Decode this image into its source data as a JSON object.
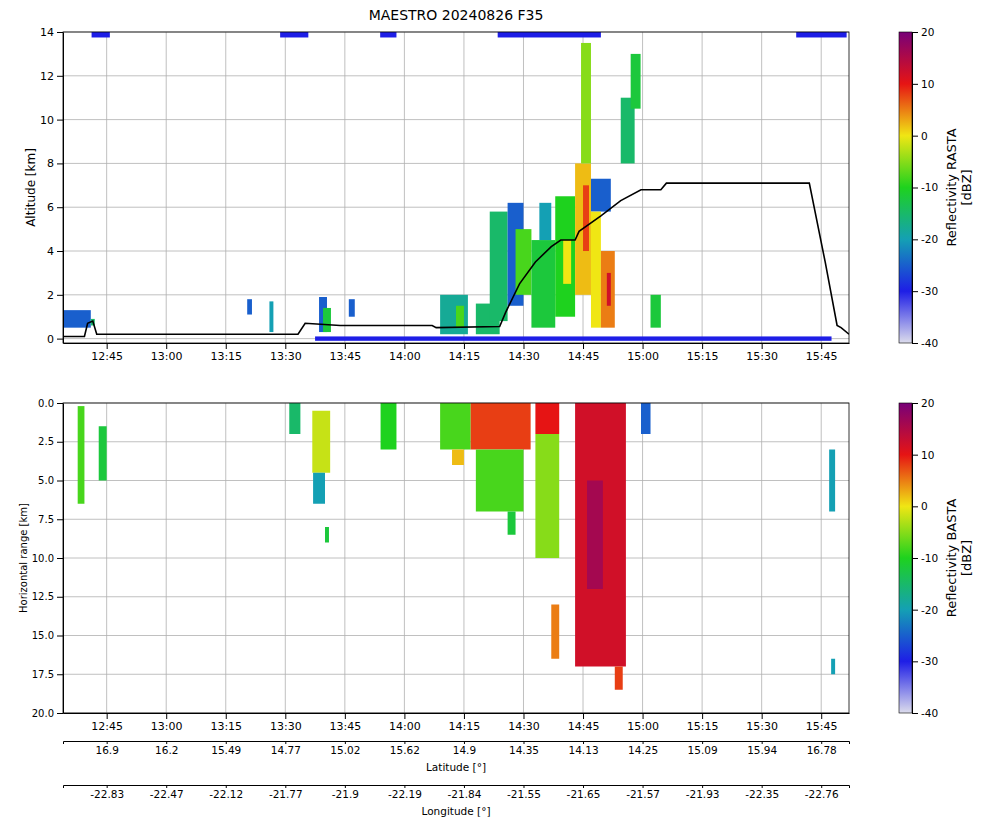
{
  "chart_data": [
    {
      "type": "heatmap",
      "title": "MAESTRO 20240826 F35",
      "y_label": "Altitude [km]",
      "xlim": [
        754,
        952
      ],
      "xticks": [
        {
          "value": 765,
          "label": "12:45"
        },
        {
          "value": 780,
          "label": "13:00"
        },
        {
          "value": 795,
          "label": "13:15"
        },
        {
          "value": 810,
          "label": "13:30"
        },
        {
          "value": 825,
          "label": "13:45"
        },
        {
          "value": 840,
          "label": "14:00"
        },
        {
          "value": 855,
          "label": "14:15"
        },
        {
          "value": 870,
          "label": "14:30"
        },
        {
          "value": 885,
          "label": "14:45"
        },
        {
          "value": 900,
          "label": "15:00"
        },
        {
          "value": 915,
          "label": "15:15"
        },
        {
          "value": 930,
          "label": "15:30"
        },
        {
          "value": 945,
          "label": "15:45"
        }
      ],
      "ylim": [
        -0.2,
        14
      ],
      "yticks": [
        0,
        2,
        4,
        6,
        8,
        10,
        12,
        14
      ],
      "grid": true,
      "colorbar": {
        "label": "Reflectivity RASTA\n[dBZ]",
        "range": [
          -40,
          20
        ],
        "ticks": [
          -40,
          -30,
          -20,
          -10,
          0,
          10,
          20
        ]
      },
      "cells": [
        [
          754,
          761,
          0.5,
          1.3,
          -25
        ],
        [
          761,
          762,
          0.6,
          0.9,
          -15
        ],
        [
          761.2,
          765.8,
          13.75,
          14,
          -30
        ],
        [
          800.4,
          801.6,
          1.1,
          1.8,
          -25
        ],
        [
          806,
          807,
          0.3,
          1.7,
          -20
        ],
        [
          808.7,
          815.8,
          13.75,
          14,
          -30
        ],
        [
          817.5,
          947.6,
          -0.1,
          0.1,
          -30
        ],
        [
          818.5,
          820.5,
          0.3,
          1.9,
          -25
        ],
        [
          819.5,
          821.5,
          0.3,
          1.4,
          -12
        ],
        [
          826,
          827.5,
          1.0,
          1.8,
          -25
        ],
        [
          833.9,
          838,
          13.75,
          14,
          -30
        ],
        [
          849,
          856,
          0.2,
          2.0,
          -18
        ],
        [
          853,
          855,
          0.5,
          1.5,
          -8
        ],
        [
          858,
          864,
          0.2,
          1.6,
          -15
        ],
        [
          863.5,
          889.5,
          13.75,
          14,
          -30
        ],
        [
          861.5,
          866,
          0.8,
          5.8,
          -15
        ],
        [
          866,
          870,
          1.5,
          6.2,
          -25
        ],
        [
          868,
          872,
          2.0,
          5.0,
          -8
        ],
        [
          872,
          878,
          0.5,
          4.5,
          -12
        ],
        [
          874,
          877,
          4.5,
          6.2,
          -20
        ],
        [
          878,
          883,
          1.0,
          6.5,
          -10
        ],
        [
          880,
          882,
          2.5,
          4.5,
          0
        ],
        [
          883,
          887,
          2,
          8,
          2
        ],
        [
          884.5,
          887,
          8,
          13.5,
          -5
        ],
        [
          885,
          886.5,
          4,
          7,
          8
        ],
        [
          887,
          892,
          5.8,
          7.3,
          -25
        ],
        [
          887,
          889.5,
          0.5,
          5.8,
          0
        ],
        [
          889.5,
          893,
          0.5,
          4.0,
          5
        ],
        [
          891,
          892,
          1.5,
          3,
          12
        ],
        [
          894.5,
          898,
          8,
          11,
          -15
        ],
        [
          897,
          899.5,
          10.5,
          13,
          -12
        ],
        [
          902,
          904.6,
          0.5,
          2,
          -12
        ],
        [
          938.7,
          951.4,
          13.75,
          14,
          -30
        ]
      ],
      "line": {
        "color": "#000000",
        "x": [
          754,
          759.4,
          760.2,
          761.5,
          762.5,
          813.2,
          815,
          823.8,
          847,
          848,
          864,
          865.5,
          869,
          873,
          877,
          879.4,
          883,
          884,
          889.5,
          894.5,
          899.6,
          904.6,
          906,
          942,
          946,
          949,
          950,
          952
        ],
        "y": [
          0.1,
          0.1,
          0.7,
          0.8,
          0.2,
          0.2,
          0.7,
          0.6,
          0.6,
          0.5,
          0.55,
          1.2,
          2.5,
          3.5,
          4.2,
          4.5,
          4.5,
          4.9,
          5.6,
          6.3,
          6.8,
          6.8,
          7.1,
          7.1,
          3.5,
          0.6,
          0.5,
          0.2
        ]
      }
    },
    {
      "type": "heatmap",
      "y_label": "Horizontal range [km]",
      "xlim": [
        754,
        952
      ],
      "xticks": [
        {
          "value": 765,
          "label": "12:45"
        },
        {
          "value": 780,
          "label": "13:00"
        },
        {
          "value": 795,
          "label": "13:15"
        },
        {
          "value": 810,
          "label": "13:30"
        },
        {
          "value": 825,
          "label": "13:45"
        },
        {
          "value": 840,
          "label": "14:00"
        },
        {
          "value": 855,
          "label": "14:15"
        },
        {
          "value": 870,
          "label": "14:30"
        },
        {
          "value": 885,
          "label": "14:45"
        },
        {
          "value": 900,
          "label": "15:00"
        },
        {
          "value": 915,
          "label": "15:15"
        },
        {
          "value": 930,
          "label": "15:30"
        },
        {
          "value": 945,
          "label": "15:45"
        }
      ],
      "ylim": [
        20,
        0
      ],
      "yticks": [
        {
          "value": 0,
          "label": "0.0"
        },
        {
          "value": 2.5,
          "label": "2.5"
        },
        {
          "value": 5,
          "label": "5.0"
        },
        {
          "value": 7.5,
          "label": "7.5"
        },
        {
          "value": 10,
          "label": "10.0"
        },
        {
          "value": 12.5,
          "label": "12.5"
        },
        {
          "value": 15,
          "label": "15.0"
        },
        {
          "value": 17.5,
          "label": "17.5"
        },
        {
          "value": 20,
          "label": "20.0"
        }
      ],
      "grid": true,
      "colorbar": {
        "label": "Reflectivity BASTA\n[dBZ]",
        "range": [
          -40,
          20
        ],
        "ticks": [
          -40,
          -30,
          -20,
          -10,
          0,
          10,
          20
        ]
      },
      "x2_label": "Latitude [°]",
      "x2ticks": [
        {
          "value": 765,
          "label": "16.9"
        },
        {
          "value": 780,
          "label": "16.2"
        },
        {
          "value": 795,
          "label": "15.49"
        },
        {
          "value": 810,
          "label": "14.77"
        },
        {
          "value": 825,
          "label": "15.02"
        },
        {
          "value": 840,
          "label": "15.62"
        },
        {
          "value": 855,
          "label": "14.9"
        },
        {
          "value": 870,
          "label": "14.35"
        },
        {
          "value": 885,
          "label": "14.13"
        },
        {
          "value": 900,
          "label": "14.25"
        },
        {
          "value": 915,
          "label": "15.09"
        },
        {
          "value": 930,
          "label": "15.94"
        },
        {
          "value": 945,
          "label": "16.78"
        }
      ],
      "x3_label": "Longitude [°]",
      "x3ticks": [
        {
          "value": 765,
          "label": "-22.83"
        },
        {
          "value": 780,
          "label": "-22.47"
        },
        {
          "value": 795,
          "label": "-22.12"
        },
        {
          "value": 810,
          "label": "-21.77"
        },
        {
          "value": 825,
          "label": "-21.9"
        },
        {
          "value": 840,
          "label": "-22.19"
        },
        {
          "value": 855,
          "label": "-21.84"
        },
        {
          "value": 870,
          "label": "-21.55"
        },
        {
          "value": 885,
          "label": "-21.65"
        },
        {
          "value": 900,
          "label": "-21.57"
        },
        {
          "value": 915,
          "label": "-21.93"
        },
        {
          "value": 930,
          "label": "-22.35"
        },
        {
          "value": 945,
          "label": "-22.76"
        }
      ],
      "cells": [
        [
          757.7,
          759.4,
          0.2,
          6.5,
          -8
        ],
        [
          763,
          765,
          1.5,
          5.0,
          -12
        ],
        [
          811,
          813.8,
          0,
          2,
          -15
        ],
        [
          816.8,
          821.3,
          0.5,
          4.5,
          -2
        ],
        [
          817,
          820,
          4.5,
          6.5,
          -20
        ],
        [
          820,
          821,
          8,
          9,
          -12
        ],
        [
          834,
          838,
          0,
          3,
          -10
        ],
        [
          849,
          856.7,
          0,
          3,
          -8
        ],
        [
          852,
          855,
          3,
          4,
          2
        ],
        [
          856.7,
          871.8,
          0,
          3,
          8
        ],
        [
          858,
          870,
          3,
          7,
          -8
        ],
        [
          866,
          868,
          7,
          8.5,
          -12
        ],
        [
          873,
          879,
          0,
          2,
          10
        ],
        [
          873,
          879,
          2,
          10,
          -5
        ],
        [
          877,
          879,
          13,
          16.5,
          5
        ],
        [
          883,
          895.8,
          0,
          17,
          12
        ],
        [
          886,
          890,
          5,
          12,
          16
        ],
        [
          893,
          895,
          17,
          18.5,
          8
        ],
        [
          899.6,
          902,
          0,
          2,
          -25
        ],
        [
          947,
          948.5,
          3,
          7,
          -20
        ],
        [
          947.5,
          948.5,
          16.5,
          17.5,
          -20
        ]
      ]
    }
  ]
}
